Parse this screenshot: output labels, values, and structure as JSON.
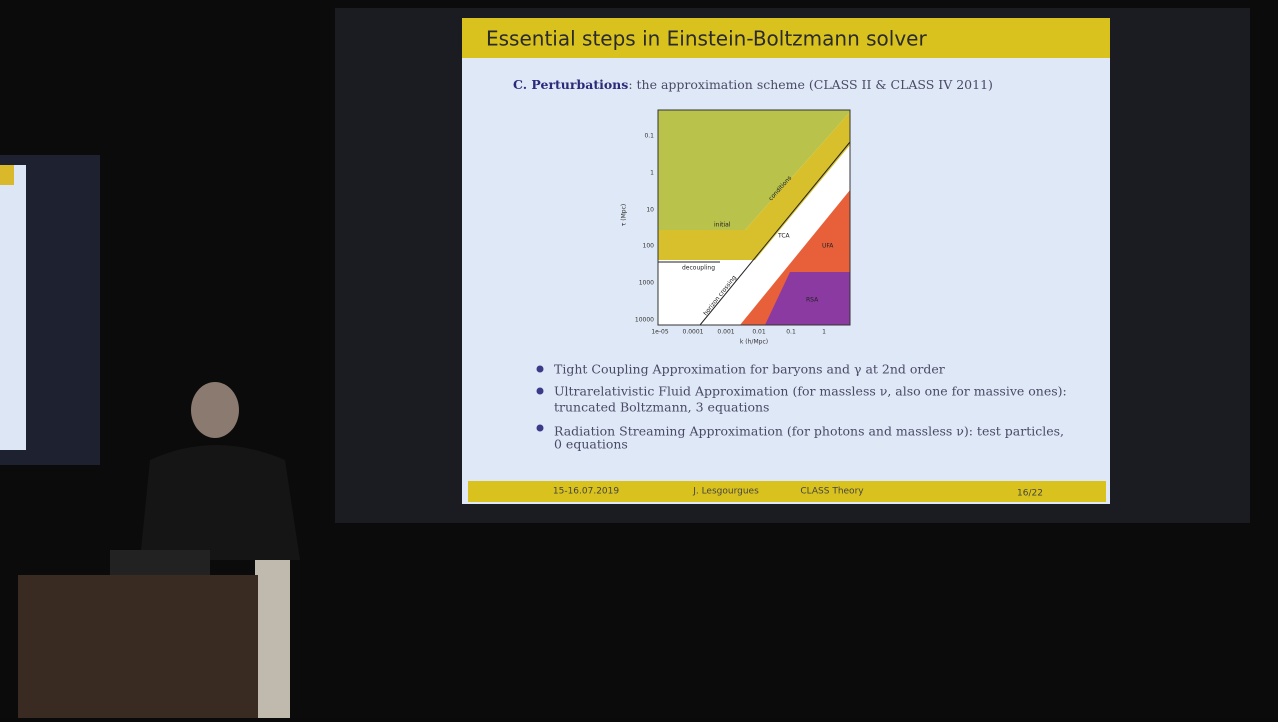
{
  "slide": {
    "title": "Essential steps in Einstein-Boltzmann solver",
    "heading_bold": "C. Perturbations",
    "heading_rest": ": the approximation scheme (CLASS II & CLASS IV 2011)",
    "plot": {
      "yticks": [
        "0.1",
        "1",
        "10",
        "100",
        "1000",
        "10000"
      ],
      "xticks": [
        "1e-05",
        "0.0001",
        "0.001",
        "0.01",
        "0.1",
        "1"
      ],
      "xlabel": "k (h/Mpc)",
      "ylabel": "τ (Mpc)",
      "regions": [
        "initial",
        "conditions",
        "TCA",
        "UFA",
        "decoupling",
        "horizon crossing",
        "RSA"
      ]
    },
    "bullets": [
      [
        "Tight Coupling Approximation for baryons and γ at 2nd order"
      ],
      [
        "Ultrarelativistic Fluid Approximation (for massless ν, also one for massive ones):",
        "truncated Boltzmann, 3 equations"
      ],
      [
        "Radiation Streaming Approximation (for photons and massless ν): test particles,",
        "0 equations"
      ]
    ],
    "footer": [
      "15-16.07.2019",
      "J. Lesgourgues",
      "CLASS Theory",
      "16/22"
    ]
  }
}
